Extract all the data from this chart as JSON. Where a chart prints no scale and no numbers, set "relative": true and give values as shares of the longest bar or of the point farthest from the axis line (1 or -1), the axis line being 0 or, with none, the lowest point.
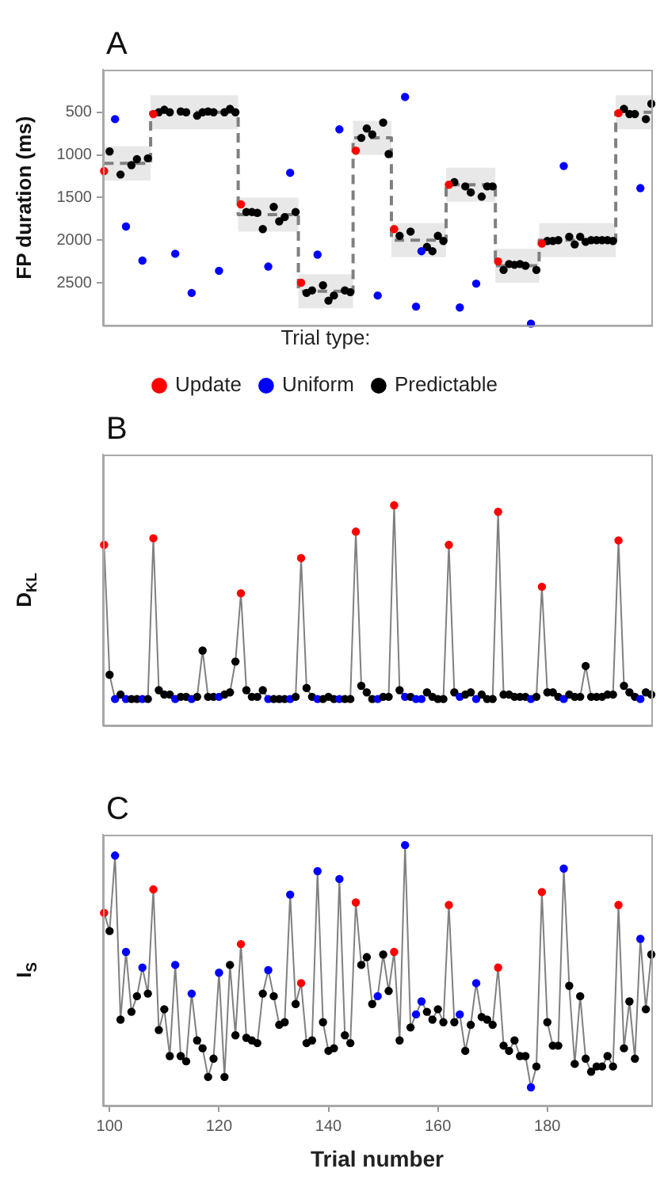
{
  "chart_data": [
    {
      "type": "scatter",
      "title": "A",
      "ylabel": "FP duration (ms)",
      "legend_title": "Trial type:",
      "legend": "bottom",
      "marker": "circle",
      "tick_labels": "y",
      "xlim": [
        98.8,
        199
      ],
      "ylim": [
        3000,
        0
      ],
      "yticks": [
        500,
        1000,
        1500,
        2000,
        2500
      ],
      "series": [
        {
          "type": "step",
          "color": "#808080",
          "line_style": "dashed",
          "marker": "none",
          "x": [
            99,
            107.5,
            123.5,
            134.5,
            144.5,
            151.5,
            161.5,
            170.5,
            178.5,
            192.5,
            199
          ],
          "values": [
            1100,
            500,
            1700,
            2600,
            800,
            2000,
            1350,
            2300,
            2000,
            500,
            500
          ],
          "lower": [
            900,
            300,
            1500,
            2400,
            600,
            1800,
            1150,
            2100,
            1800,
            300,
            300
          ],
          "upper": [
            1300,
            700,
            1900,
            2800,
            1000,
            2200,
            1550,
            2500,
            2200,
            700,
            700
          ]
        },
        {
          "name": "Update",
          "color": "#ff0000",
          "x": [
            99,
            108,
            124,
            135,
            145,
            152,
            162,
            171,
            179,
            193
          ],
          "values": [
            1190,
            520,
            1580,
            2500,
            950,
            1870,
            1350,
            2250,
            2040,
            510
          ]
        },
        {
          "name": "Uniform",
          "color": "#0000ff",
          "x": [
            101,
            103,
            106,
            112,
            115,
            120,
            129,
            133,
            138,
            142,
            149,
            154,
            156,
            157,
            164,
            167,
            177,
            183,
            197
          ],
          "values": [
            580,
            1840,
            2240,
            2160,
            2620,
            2360,
            2310,
            1210,
            2170,
            700,
            2650,
            320,
            2780,
            2130,
            2790,
            2510,
            2980,
            1130,
            1390
          ]
        },
        {
          "name": "Predictable",
          "color": "#000000",
          "x": [
            100,
            102,
            104,
            105,
            107,
            109,
            110,
            111,
            113,
            114,
            116,
            117,
            118,
            119,
            121,
            122,
            123,
            125,
            126,
            127,
            128,
            130,
            131,
            132,
            134,
            136,
            137,
            139,
            140,
            141,
            143,
            144,
            146,
            147,
            148,
            150,
            151,
            153,
            155,
            158,
            159,
            160,
            161,
            163,
            165,
            166,
            168,
            169,
            170,
            172,
            173,
            174,
            175,
            176,
            178,
            180,
            181,
            182,
            184,
            185,
            186,
            187,
            188,
            189,
            190,
            191,
            192,
            194,
            195,
            196,
            198,
            199
          ],
          "values": [
            960,
            1230,
            1120,
            1050,
            1040,
            500,
            470,
            500,
            490,
            500,
            540,
            500,
            490,
            500,
            500,
            460,
            500,
            1670,
            1670,
            1680,
            1870,
            1610,
            1780,
            1730,
            1670,
            2620,
            2590,
            2530,
            2710,
            2650,
            2590,
            2610,
            800,
            690,
            760,
            620,
            990,
            1950,
            1900,
            2080,
            2130,
            1950,
            2010,
            1320,
            1370,
            1440,
            1490,
            1370,
            1370,
            2350,
            2280,
            2290,
            2280,
            2300,
            2350,
            2010,
            2010,
            2000,
            1960,
            2050,
            1960,
            2020,
            2000,
            2000,
            2000,
            2000,
            2010,
            460,
            520,
            520,
            580,
            400
          ]
        }
      ]
    },
    {
      "type": "line",
      "title": "B",
      "ylabel": "D$_{KL}$",
      "relative": true,
      "tick_labels": false,
      "xlim": [
        98.8,
        199
      ],
      "marker": "circle",
      "series": [
        {
          "color": "#808080",
          "x": [
            99,
            100,
            101,
            102,
            103,
            104,
            105,
            106,
            107,
            108,
            109,
            110,
            111,
            112,
            113,
            114,
            115,
            116,
            117,
            118,
            119,
            120,
            121,
            122,
            123,
            124,
            125,
            126,
            127,
            128,
            129,
            130,
            131,
            132,
            133,
            134,
            135,
            136,
            137,
            138,
            139,
            140,
            141,
            142,
            143,
            144,
            145,
            146,
            147,
            148,
            149,
            150,
            151,
            152,
            153,
            154,
            155,
            156,
            157,
            158,
            159,
            160,
            161,
            162,
            163,
            164,
            165,
            166,
            167,
            168,
            169,
            170,
            171,
            172,
            173,
            174,
            175,
            176,
            177,
            178,
            179,
            180,
            181,
            182,
            183,
            184,
            185,
            186,
            187,
            188,
            189,
            190,
            191,
            192,
            193,
            194,
            195,
            196,
            197,
            198,
            199
          ],
          "values": [
            0.82,
            0.23,
            0.12,
            0.14,
            0.12,
            0.12,
            0.12,
            0.12,
            0.12,
            0.85,
            0.16,
            0.14,
            0.14,
            0.12,
            0.13,
            0.13,
            0.12,
            0.13,
            0.34,
            0.13,
            0.13,
            0.13,
            0.14,
            0.15,
            0.29,
            0.6,
            0.16,
            0.13,
            0.13,
            0.16,
            0.12,
            0.12,
            0.12,
            0.12,
            0.12,
            0.13,
            0.76,
            0.17,
            0.13,
            0.12,
            0.12,
            0.13,
            0.12,
            0.12,
            0.12,
            0.12,
            0.88,
            0.18,
            0.15,
            0.12,
            0.12,
            0.13,
            0.13,
            1,
            0.16,
            0.13,
            0.13,
            0.12,
            0.12,
            0.15,
            0.13,
            0.12,
            0.12,
            0.82,
            0.15,
            0.13,
            0.14,
            0.15,
            0.12,
            0.14,
            0.12,
            0.12,
            0.97,
            0.14,
            0.14,
            0.13,
            0.13,
            0.13,
            0.12,
            0.13,
            0.63,
            0.15,
            0.15,
            0.13,
            0.12,
            0.14,
            0.13,
            0.13,
            0.27,
            0.13,
            0.13,
            0.13,
            0.14,
            0.14,
            0.84,
            0.18,
            0.15,
            0.13,
            0.12,
            0.15,
            0.14
          ],
          "colors": [
            "#ff0000",
            "#000000",
            "#0000ff",
            "#000000",
            "#0000ff",
            "#000000",
            "#000000",
            "#0000ff",
            "#000000",
            "#ff0000",
            "#000000",
            "#000000",
            "#000000",
            "#0000ff",
            "#000000",
            "#000000",
            "#0000ff",
            "#000000",
            "#000000",
            "#000000",
            "#000000",
            "#0000ff",
            "#000000",
            "#000000",
            "#000000",
            "#ff0000",
            "#000000",
            "#000000",
            "#000000",
            "#000000",
            "#0000ff",
            "#000000",
            "#000000",
            "#000000",
            "#0000ff",
            "#000000",
            "#ff0000",
            "#000000",
            "#000000",
            "#0000ff",
            "#000000",
            "#000000",
            "#000000",
            "#0000ff",
            "#000000",
            "#000000",
            "#ff0000",
            "#000000",
            "#000000",
            "#000000",
            "#0000ff",
            "#000000",
            "#000000",
            "#ff0000",
            "#000000",
            "#0000ff",
            "#000000",
            "#0000ff",
            "#0000ff",
            "#000000",
            "#000000",
            "#000000",
            "#000000",
            "#ff0000",
            "#000000",
            "#0000ff",
            "#000000",
            "#000000",
            "#0000ff",
            "#000000",
            "#000000",
            "#000000",
            "#ff0000",
            "#000000",
            "#000000",
            "#000000",
            "#000000",
            "#000000",
            "#0000ff",
            "#000000",
            "#ff0000",
            "#000000",
            "#000000",
            "#000000",
            "#0000ff",
            "#000000",
            "#000000",
            "#000000",
            "#000000",
            "#000000",
            "#000000",
            "#000000",
            "#000000",
            "#000000",
            "#ff0000",
            "#000000",
            "#000000",
            "#000000",
            "#0000ff",
            "#000000",
            "#000000"
          ]
        }
      ]
    },
    {
      "type": "line",
      "title": "C",
      "ylabel": "I$_{S}$",
      "xlabel": "Trial number",
      "relative": true,
      "tick_labels": "x",
      "xlim": [
        98.8,
        199
      ],
      "xticks": [
        100,
        120,
        140,
        160,
        180
      ],
      "marker": "circle",
      "series": [
        {
          "color": "#808080",
          "x": [
            99,
            100,
            101,
            102,
            103,
            104,
            105,
            106,
            107,
            108,
            109,
            110,
            111,
            112,
            113,
            114,
            115,
            116,
            117,
            118,
            119,
            120,
            121,
            122,
            123,
            124,
            125,
            126,
            127,
            128,
            129,
            130,
            131,
            132,
            133,
            134,
            135,
            136,
            137,
            138,
            139,
            140,
            141,
            142,
            143,
            144,
            145,
            146,
            147,
            148,
            149,
            150,
            151,
            152,
            153,
            154,
            155,
            156,
            157,
            158,
            159,
            160,
            161,
            162,
            163,
            164,
            165,
            166,
            167,
            168,
            169,
            170,
            171,
            172,
            173,
            174,
            175,
            176,
            177,
            178,
            179,
            180,
            181,
            182,
            183,
            184,
            185,
            186,
            187,
            188,
            189,
            190,
            191,
            192,
            193,
            194,
            195,
            196,
            197,
            198,
            199
          ],
          "values": [
            0.74,
            0.67,
            0.96,
            0.33,
            0.59,
            0.36,
            0.42,
            0.53,
            0.43,
            0.83,
            0.29,
            0.37,
            0.19,
            0.54,
            0.19,
            0.17,
            0.43,
            0.25,
            0.22,
            0.11,
            0.18,
            0.51,
            0.11,
            0.54,
            0.27,
            0.62,
            0.26,
            0.25,
            0.24,
            0.43,
            0.52,
            0.42,
            0.31,
            0.32,
            0.81,
            0.39,
            0.47,
            0.24,
            0.25,
            0.9,
            0.32,
            0.21,
            0.22,
            0.87,
            0.27,
            0.24,
            0.78,
            0.54,
            0.57,
            0.39,
            0.42,
            0.58,
            0.44,
            0.59,
            0.25,
            1,
            0.3,
            0.35,
            0.4,
            0.36,
            0.33,
            0.37,
            0.32,
            0.77,
            0.32,
            0.35,
            0.21,
            0.31,
            0.47,
            0.34,
            0.33,
            0.31,
            0.53,
            0.23,
            0.21,
            0.25,
            0.19,
            0.19,
            0.07,
            0.15,
            0.82,
            0.32,
            0.23,
            0.23,
            0.91,
            0.46,
            0.16,
            0.42,
            0.18,
            0.13,
            0.15,
            0.15,
            0.19,
            0.15,
            0.77,
            0.22,
            0.4,
            0.18,
            0.64,
            0.37,
            0.58
          ],
          "colors": [
            "#ff0000",
            "#000000",
            "#0000ff",
            "#000000",
            "#0000ff",
            "#000000",
            "#000000",
            "#0000ff",
            "#000000",
            "#ff0000",
            "#000000",
            "#000000",
            "#000000",
            "#0000ff",
            "#000000",
            "#000000",
            "#0000ff",
            "#000000",
            "#000000",
            "#000000",
            "#000000",
            "#0000ff",
            "#000000",
            "#000000",
            "#000000",
            "#ff0000",
            "#000000",
            "#000000",
            "#000000",
            "#000000",
            "#0000ff",
            "#000000",
            "#000000",
            "#000000",
            "#0000ff",
            "#000000",
            "#ff0000",
            "#000000",
            "#000000",
            "#0000ff",
            "#000000",
            "#000000",
            "#000000",
            "#0000ff",
            "#000000",
            "#000000",
            "#ff0000",
            "#000000",
            "#000000",
            "#000000",
            "#0000ff",
            "#000000",
            "#000000",
            "#ff0000",
            "#000000",
            "#0000ff",
            "#000000",
            "#0000ff",
            "#0000ff",
            "#000000",
            "#000000",
            "#000000",
            "#000000",
            "#ff0000",
            "#000000",
            "#0000ff",
            "#000000",
            "#000000",
            "#0000ff",
            "#000000",
            "#000000",
            "#000000",
            "#ff0000",
            "#000000",
            "#000000",
            "#000000",
            "#000000",
            "#000000",
            "#0000ff",
            "#000000",
            "#ff0000",
            "#000000",
            "#000000",
            "#000000",
            "#0000ff",
            "#000000",
            "#000000",
            "#000000",
            "#000000",
            "#000000",
            "#000000",
            "#000000",
            "#000000",
            "#000000",
            "#ff0000",
            "#000000",
            "#000000",
            "#000000",
            "#0000ff",
            "#000000",
            "#000000"
          ]
        }
      ]
    }
  ]
}
